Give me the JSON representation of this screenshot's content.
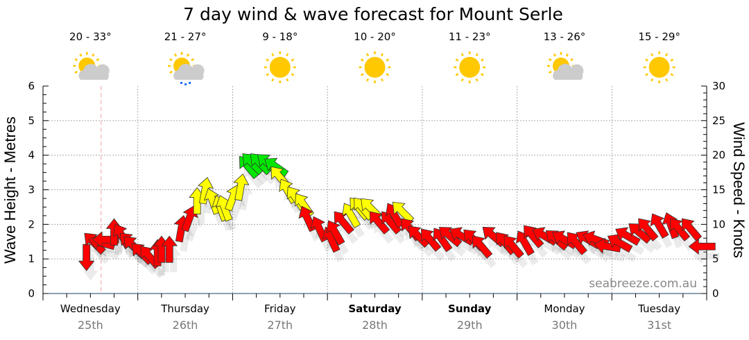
{
  "chart_data": {
    "type": "scatter",
    "title": "7 day wind & wave forecast for Mount Serle",
    "ylabel": "Wave Height - Metres",
    "ylabel_right": "Wind Speed - Knots",
    "ylim": [
      0,
      6
    ],
    "ylim_right": [
      0,
      30
    ],
    "yticks": [
      "0",
      "1",
      "2",
      "3",
      "4",
      "5",
      "6"
    ],
    "yticks_right": [
      "0",
      "5",
      "10",
      "15",
      "20",
      "25",
      "30"
    ],
    "grid": true,
    "watermark": "seabreeze.com.au",
    "days": [
      {
        "name": "Wednesday",
        "date": "25th",
        "temps": "20 - 33°",
        "icon": "partly-cloudy",
        "bold": false
      },
      {
        "name": "Thursday",
        "date": "26th",
        "temps": "21 - 27°",
        "icon": "partly-cloudy-rain",
        "bold": false
      },
      {
        "name": "Friday",
        "date": "27th",
        "temps": "9 - 18°",
        "icon": "sunny",
        "bold": false
      },
      {
        "name": "Saturday",
        "date": "28th",
        "temps": "10 - 20°",
        "icon": "sunny",
        "bold": true
      },
      {
        "name": "Sunday",
        "date": "29th",
        "temps": "11 - 23°",
        "icon": "sunny",
        "bold": true
      },
      {
        "name": "Monday",
        "date": "30th",
        "temps": "13 - 26°",
        "icon": "partly-cloudy",
        "bold": false
      },
      {
        "name": "Tuesday",
        "date": "31st",
        "temps": "15 - 29°",
        "icon": "sunny",
        "bold": false
      }
    ],
    "now_hour": 14.7,
    "colors": {
      "r": "#ff0000",
      "y": "#ffff00",
      "g": "#00e600",
      "now": "#f4a0a0"
    },
    "wind_series_fields": [
      "hour",
      "knots",
      "heading_deg",
      "color"
    ],
    "wind": [
      [
        11,
        5.3,
        180,
        "r"
      ],
      [
        13,
        7.3,
        315,
        "r"
      ],
      [
        15,
        7.3,
        285,
        "r"
      ],
      [
        16,
        7.8,
        270,
        "r"
      ],
      [
        18,
        8.8,
        0,
        "r"
      ],
      [
        20,
        8.3,
        330,
        "r"
      ],
      [
        22,
        7.3,
        315,
        "r"
      ],
      [
        23,
        6.8,
        315,
        "r"
      ],
      [
        25,
        5.8,
        315,
        "r"
      ],
      [
        27,
        5.3,
        320,
        "r"
      ],
      [
        29,
        5.8,
        0,
        "r"
      ],
      [
        30,
        6.3,
        0,
        "r"
      ],
      [
        32,
        6.3,
        0,
        "r"
      ],
      [
        35,
        9.3,
        10,
        "r"
      ],
      [
        37,
        10.8,
        20,
        "r"
      ],
      [
        39,
        13.3,
        0,
        "y"
      ],
      [
        41,
        14.8,
        10,
        "y"
      ],
      [
        43,
        13.3,
        340,
        "y"
      ],
      [
        45,
        12.3,
        340,
        "y"
      ],
      [
        46,
        12.3,
        340,
        "y"
      ],
      [
        48,
        13.8,
        20,
        "y"
      ],
      [
        50,
        15.3,
        10,
        "y"
      ],
      [
        52,
        18.3,
        320,
        "g"
      ],
      [
        53,
        18.8,
        315,
        "g"
      ],
      [
        55,
        18.8,
        315,
        "g"
      ],
      [
        57,
        18.8,
        310,
        "g"
      ],
      [
        59,
        18.3,
        305,
        "g"
      ],
      [
        60,
        16.8,
        320,
        "y"
      ],
      [
        62,
        14.8,
        330,
        "y"
      ],
      [
        64,
        13.8,
        325,
        "y"
      ],
      [
        66,
        12.8,
        325,
        "y"
      ],
      [
        67,
        10.8,
        335,
        "r"
      ],
      [
        70,
        9.3,
        335,
        "r"
      ],
      [
        73,
        7.8,
        335,
        "r"
      ],
      [
        74,
        8.8,
        330,
        "r"
      ],
      [
        76,
        10.3,
        320,
        "r"
      ],
      [
        78,
        11.3,
        330,
        "y"
      ],
      [
        80,
        12.3,
        320,
        "y"
      ],
      [
        81,
        12.3,
        320,
        "y"
      ],
      [
        83,
        12.3,
        315,
        "y"
      ],
      [
        85,
        10.3,
        320,
        "r"
      ],
      [
        88,
        10.3,
        320,
        "r"
      ],
      [
        89,
        11.3,
        330,
        "r"
      ],
      [
        91,
        11.8,
        315,
        "y"
      ],
      [
        93,
        9.3,
        320,
        "r"
      ],
      [
        95,
        8.3,
        315,
        "r"
      ],
      [
        98,
        7.8,
        320,
        "r"
      ],
      [
        101,
        7.8,
        325,
        "r"
      ],
      [
        103,
        8.3,
        310,
        "r"
      ],
      [
        106,
        8.3,
        300,
        "r"
      ],
      [
        109,
        7.8,
        315,
        "r"
      ],
      [
        111,
        6.8,
        320,
        "r"
      ],
      [
        114,
        8.3,
        310,
        "r"
      ],
      [
        117,
        7.3,
        320,
        "r"
      ],
      [
        119,
        6.8,
        320,
        "r"
      ],
      [
        122,
        7.3,
        330,
        "r"
      ],
      [
        124,
        8.3,
        320,
        "r"
      ],
      [
        127,
        8.3,
        300,
        "r"
      ],
      [
        130,
        7.8,
        310,
        "r"
      ],
      [
        132,
        7.8,
        300,
        "r"
      ],
      [
        135,
        7.3,
        320,
        "r"
      ],
      [
        138,
        7.8,
        300,
        "r"
      ],
      [
        140,
        7.8,
        290,
        "r"
      ],
      [
        143,
        6.8,
        280,
        "r"
      ],
      [
        146,
        7.3,
        300,
        "r"
      ],
      [
        148,
        8.3,
        300,
        "r"
      ],
      [
        151,
        8.8,
        310,
        "r"
      ],
      [
        153,
        9.3,
        320,
        "r"
      ],
      [
        156,
        9.8,
        330,
        "r"
      ],
      [
        159,
        9.8,
        340,
        "r"
      ],
      [
        161,
        9.3,
        320,
        "r"
      ],
      [
        164,
        9.3,
        320,
        "r"
      ],
      [
        167,
        6.8,
        270,
        "r"
      ]
    ]
  }
}
